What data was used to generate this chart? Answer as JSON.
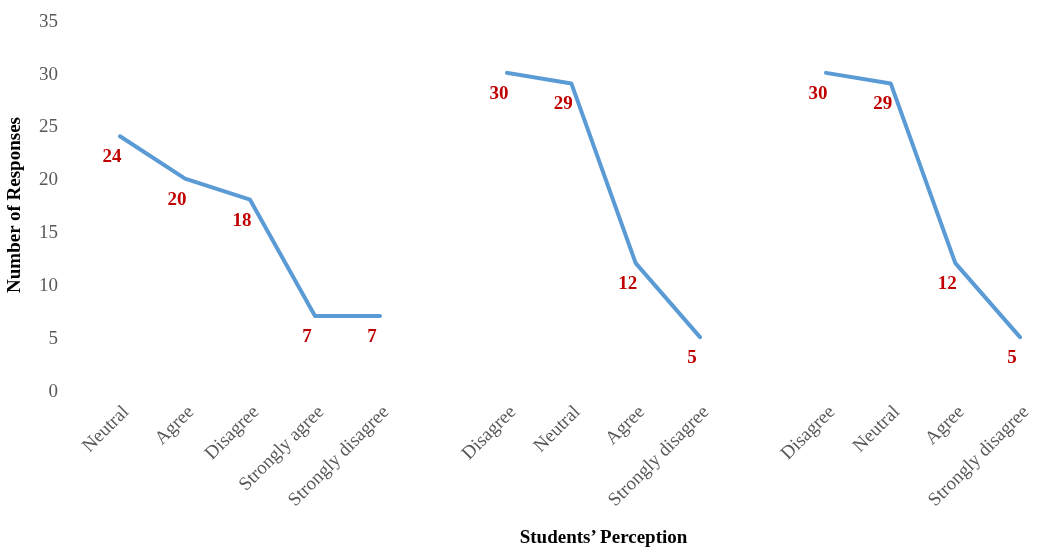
{
  "chart_data": [
    {
      "type": "line",
      "categories": [
        "Neutral",
        "Agree",
        "Disagree",
        "Strongly agree",
        "Strongly disagree"
      ],
      "series": [
        {
          "color": "#5b9bd5",
          "values": [
            24,
            20,
            18,
            7,
            7
          ]
        }
      ],
      "ylabel": "Number of Responses",
      "ylim": [
        0,
        35
      ],
      "yticks": [
        0,
        5,
        10,
        15,
        20,
        25,
        30,
        35
      ],
      "grid": false,
      "marker": "none",
      "data_labels": true
    },
    {
      "type": "line",
      "categories": [
        "Disagree",
        "Neutral",
        "Agree",
        "Strongly disagree"
      ],
      "series": [
        {
          "color": "#5b9bd5",
          "values": [
            30,
            29,
            12,
            5
          ]
        }
      ],
      "xlabel": "Students’ Perception",
      "ylim": [
        0,
        35
      ],
      "yticks": [
        0,
        5,
        10,
        15,
        20,
        25,
        30,
        35
      ],
      "tick_labels": "x",
      "grid": false,
      "marker": "none",
      "data_labels": true
    },
    {
      "type": "line",
      "categories": [
        "Disagree",
        "Neutral",
        "Agree",
        "Strongly disagree"
      ],
      "series": [
        {
          "color": "#5b9bd5",
          "values": [
            30,
            29,
            12,
            5
          ]
        }
      ],
      "ylim": [
        0,
        35
      ],
      "yticks": [
        0,
        5,
        10,
        15,
        20,
        25,
        30,
        35
      ],
      "tick_labels": "x",
      "grid": false,
      "marker": "none",
      "data_labels": true
    }
  ]
}
